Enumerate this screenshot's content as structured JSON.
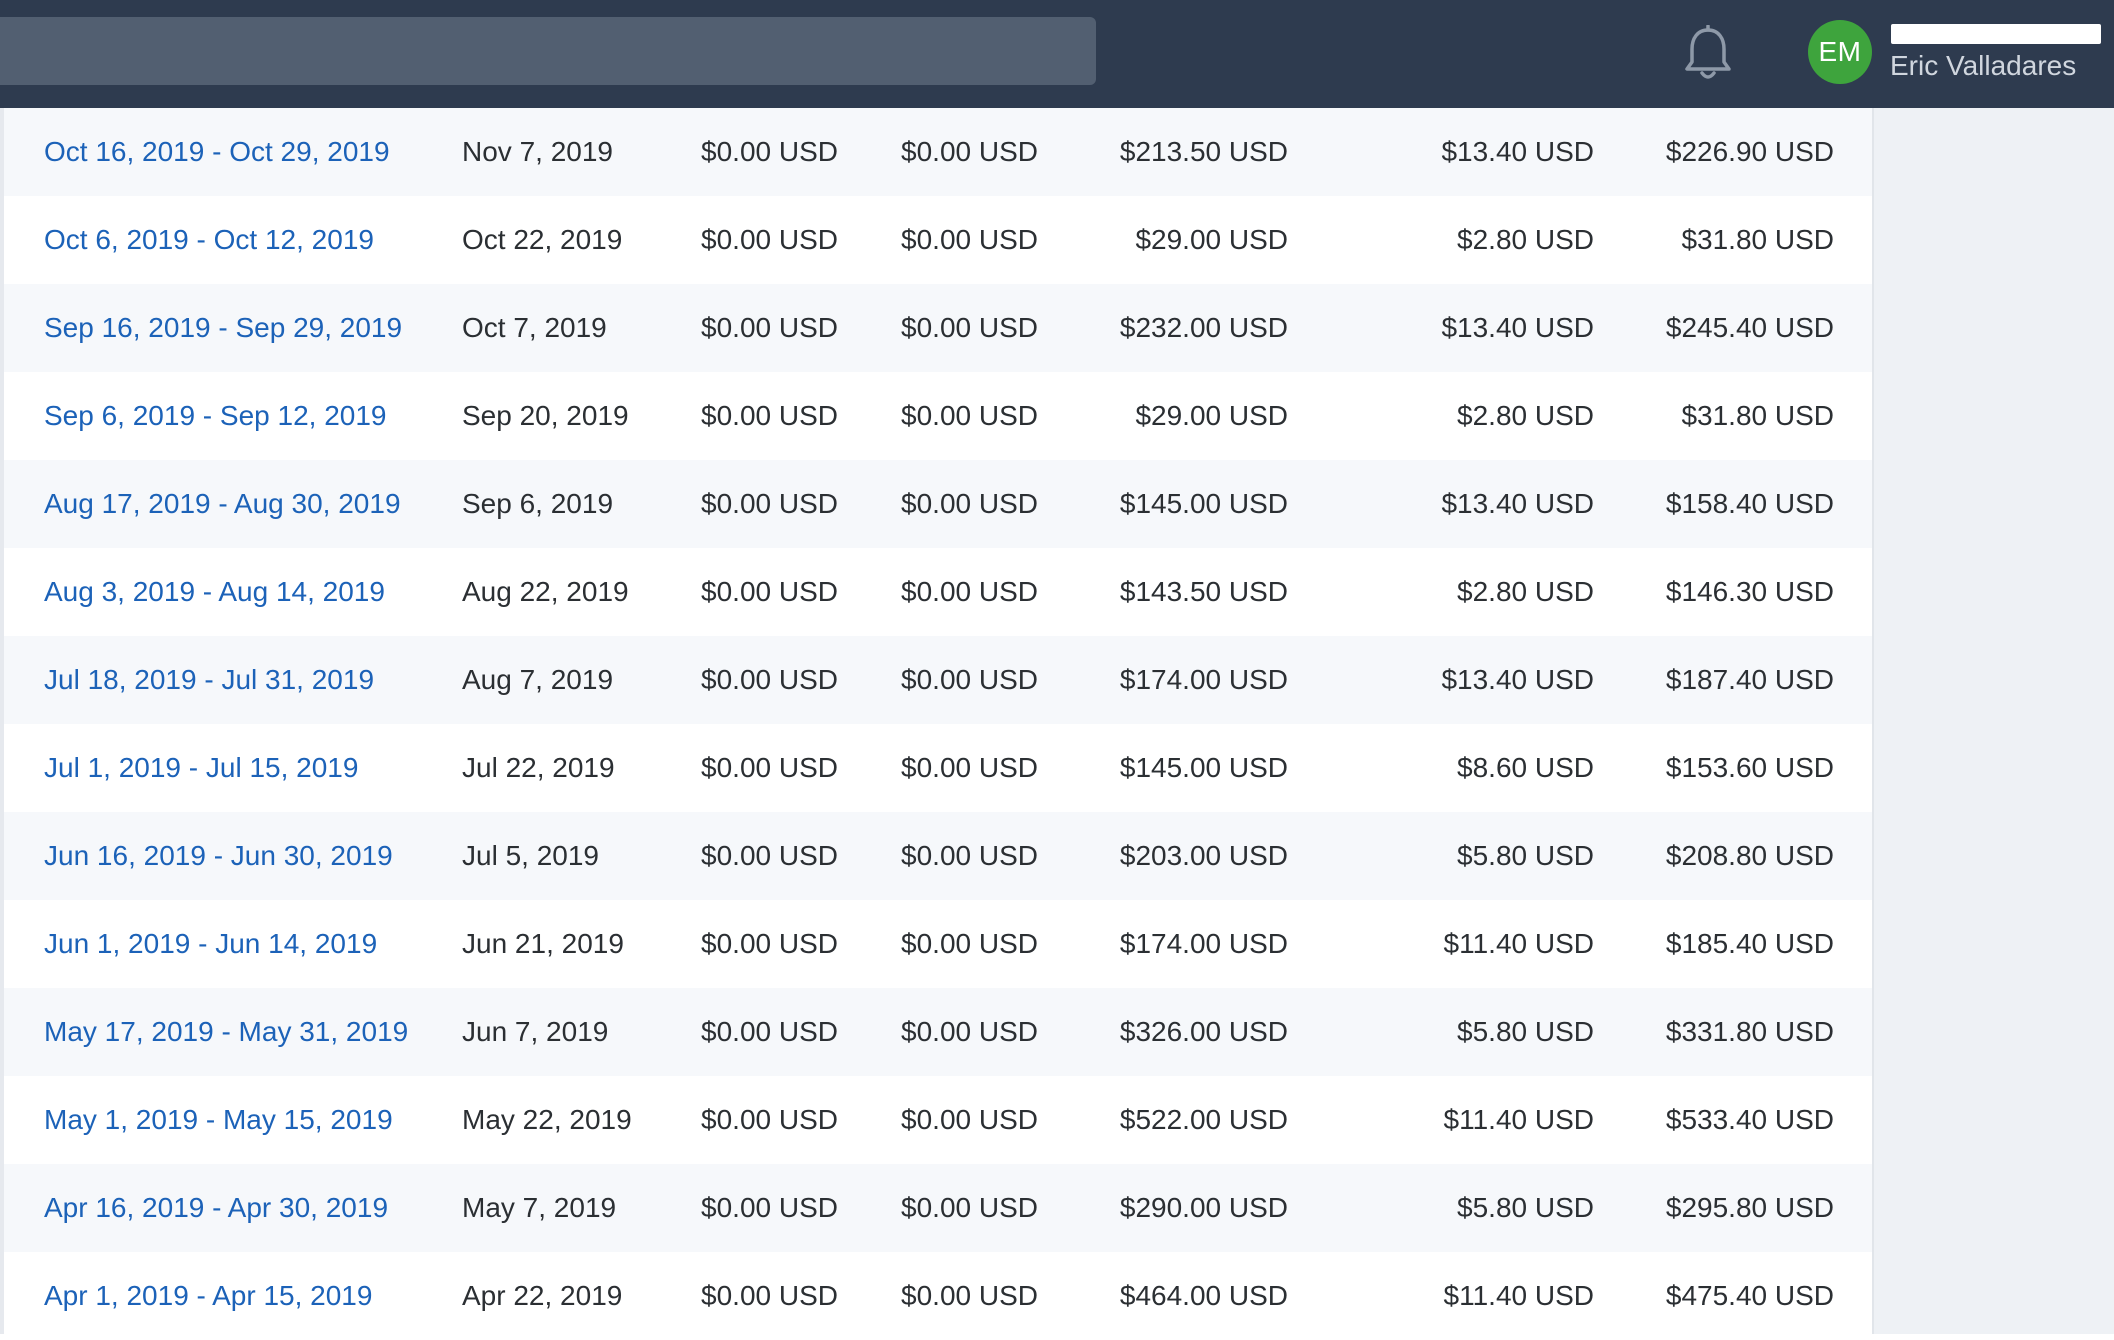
{
  "header": {
    "avatar_initials": "EM",
    "user_name": "Eric Valladares",
    "icons": {
      "notifications": "bell-icon"
    }
  },
  "colors": {
    "topbar": "#2e3b4f",
    "search": "#525f71",
    "avatar": "#3ea43d",
    "link": "#1c62b8"
  },
  "rows": [
    {
      "period": "Oct 16, 2019 - Oct 29, 2019",
      "date": "Nov 7, 2019",
      "a": "$0.00 USD",
      "b": "$0.00 USD",
      "c": "$213.50 USD",
      "d": "$13.40 USD",
      "e": "$226.90 USD"
    },
    {
      "period": "Oct 6, 2019 - Oct 12, 2019",
      "date": "Oct 22, 2019",
      "a": "$0.00 USD",
      "b": "$0.00 USD",
      "c": "$29.00 USD",
      "d": "$2.80 USD",
      "e": "$31.80 USD"
    },
    {
      "period": "Sep 16, 2019 - Sep 29, 2019",
      "date": "Oct 7, 2019",
      "a": "$0.00 USD",
      "b": "$0.00 USD",
      "c": "$232.00 USD",
      "d": "$13.40 USD",
      "e": "$245.40 USD"
    },
    {
      "period": "Sep 6, 2019 - Sep 12, 2019",
      "date": "Sep 20, 2019",
      "a": "$0.00 USD",
      "b": "$0.00 USD",
      "c": "$29.00 USD",
      "d": "$2.80 USD",
      "e": "$31.80 USD"
    },
    {
      "period": "Aug 17, 2019 - Aug 30, 2019",
      "date": "Sep 6, 2019",
      "a": "$0.00 USD",
      "b": "$0.00 USD",
      "c": "$145.00 USD",
      "d": "$13.40 USD",
      "e": "$158.40 USD"
    },
    {
      "period": "Aug 3, 2019 - Aug 14, 2019",
      "date": "Aug 22, 2019",
      "a": "$0.00 USD",
      "b": "$0.00 USD",
      "c": "$143.50 USD",
      "d": "$2.80 USD",
      "e": "$146.30 USD"
    },
    {
      "period": "Jul 18, 2019 - Jul 31, 2019",
      "date": "Aug 7, 2019",
      "a": "$0.00 USD",
      "b": "$0.00 USD",
      "c": "$174.00 USD",
      "d": "$13.40 USD",
      "e": "$187.40 USD"
    },
    {
      "period": "Jul 1, 2019 - Jul 15, 2019",
      "date": "Jul 22, 2019",
      "a": "$0.00 USD",
      "b": "$0.00 USD",
      "c": "$145.00 USD",
      "d": "$8.60 USD",
      "e": "$153.60 USD"
    },
    {
      "period": "Jun 16, 2019 - Jun 30, 2019",
      "date": "Jul 5, 2019",
      "a": "$0.00 USD",
      "b": "$0.00 USD",
      "c": "$203.00 USD",
      "d": "$5.80 USD",
      "e": "$208.80 USD"
    },
    {
      "period": "Jun 1, 2019 - Jun 14, 2019",
      "date": "Jun 21, 2019",
      "a": "$0.00 USD",
      "b": "$0.00 USD",
      "c": "$174.00 USD",
      "d": "$11.40 USD",
      "e": "$185.40 USD"
    },
    {
      "period": "May 17, 2019 - May 31, 2019",
      "date": "Jun 7, 2019",
      "a": "$0.00 USD",
      "b": "$0.00 USD",
      "c": "$326.00 USD",
      "d": "$5.80 USD",
      "e": "$331.80 USD"
    },
    {
      "period": "May 1, 2019 - May 15, 2019",
      "date": "May 22, 2019",
      "a": "$0.00 USD",
      "b": "$0.00 USD",
      "c": "$522.00 USD",
      "d": "$11.40 USD",
      "e": "$533.40 USD"
    },
    {
      "period": "Apr 16, 2019 - Apr 30, 2019",
      "date": "May 7, 2019",
      "a": "$0.00 USD",
      "b": "$0.00 USD",
      "c": "$290.00 USD",
      "d": "$5.80 USD",
      "e": "$295.80 USD"
    },
    {
      "period": "Apr 1, 2019 - Apr 15, 2019",
      "date": "Apr 22, 2019",
      "a": "$0.00 USD",
      "b": "$0.00 USD",
      "c": "$464.00 USD",
      "d": "$11.40 USD",
      "e": "$475.40 USD"
    }
  ]
}
